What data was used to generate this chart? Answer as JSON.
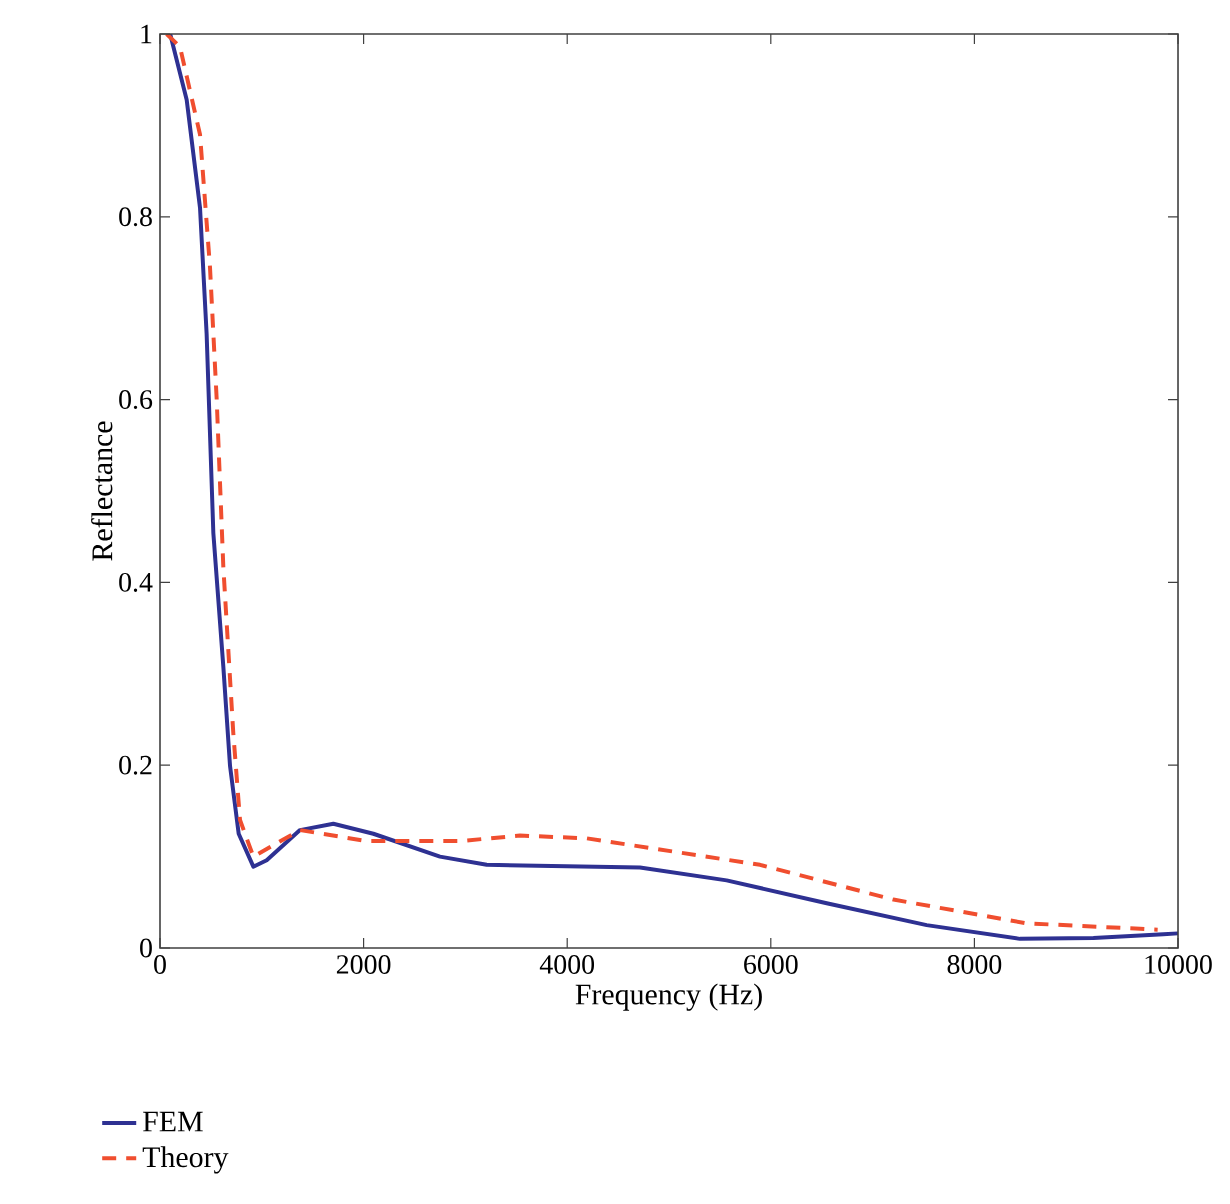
{
  "chart_data": {
    "type": "line",
    "xlabel": "Frequency (Hz)",
    "ylabel": "Reflectance",
    "xlim": [
      0,
      10000
    ],
    "ylim": [
      0,
      1
    ],
    "xticks": [
      0,
      2000,
      4000,
      6000,
      8000,
      10000
    ],
    "yticks": [
      0,
      0.2,
      0.4,
      0.6,
      0.8,
      1
    ],
    "legend": "bottom left",
    "grid": false,
    "series": [
      {
        "name": "FEM",
        "color": "#2e3192",
        "line_style": "solid",
        "x": [
          100,
          262,
          393,
          458,
          524,
          622,
          688,
          773,
          917,
          1048,
          1375,
          1703,
          2096,
          2750,
          3209,
          4715,
          5566,
          6549,
          7531,
          8448,
          9169,
          9856,
          10000
        ],
        "values": [
          1.0,
          0.928,
          0.81,
          0.672,
          0.454,
          0.308,
          0.199,
          0.125,
          0.089,
          0.096,
          0.129,
          0.136,
          0.125,
          0.1,
          0.091,
          0.088,
          0.074,
          0.049,
          0.025,
          0.01,
          0.011,
          0.015,
          0.016
        ]
      },
      {
        "name": "Theory",
        "color": "#f04e2f",
        "line_style": "dashed",
        "x": [
          65,
          196,
          393,
          491,
          557,
          622,
          720,
          786,
          917,
          1375,
          2030,
          2947,
          3536,
          4191,
          5894,
          7204,
          8513,
          9627,
          9800
        ],
        "values": [
          1.0,
          0.986,
          0.89,
          0.745,
          0.6,
          0.417,
          0.235,
          0.14,
          0.1,
          0.129,
          0.117,
          0.117,
          0.123,
          0.12,
          0.091,
          0.053,
          0.027,
          0.021,
          0.02
        ]
      }
    ]
  }
}
